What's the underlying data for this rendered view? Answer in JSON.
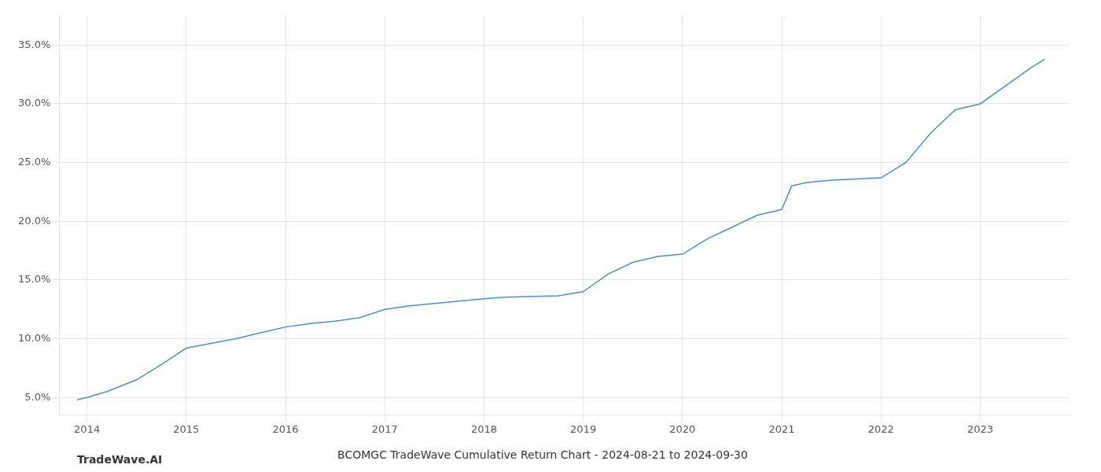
{
  "chart_data": {
    "type": "line",
    "title": "BCOMGC TradeWave Cumulative Return Chart - 2024-08-21 to 2024-09-30",
    "annotations": [
      "TradeWave.AI"
    ],
    "color": "#4a90c4",
    "x": [
      2013.9,
      2014.0,
      2014.2,
      2014.5,
      2014.75,
      2015.0,
      2015.25,
      2015.5,
      2015.75,
      2016.0,
      2016.25,
      2016.5,
      2016.75,
      2017.0,
      2017.25,
      2017.5,
      2017.75,
      2018.0,
      2018.15,
      2018.3,
      2018.5,
      2018.75,
      2019.0,
      2019.25,
      2019.5,
      2019.75,
      2020.0,
      2020.25,
      2020.5,
      2020.75,
      2021.0,
      2021.1,
      2021.25,
      2021.5,
      2021.75,
      2022.0,
      2022.25,
      2022.5,
      2022.75,
      2023.0,
      2023.25,
      2023.5,
      2023.65
    ],
    "values": [
      4.8,
      5.0,
      5.5,
      6.5,
      7.8,
      9.2,
      9.6,
      10.0,
      10.5,
      11.0,
      11.3,
      11.5,
      11.8,
      12.5,
      12.8,
      13.0,
      13.2,
      13.4,
      13.5,
      13.55,
      13.6,
      13.65,
      14.0,
      15.5,
      16.5,
      17.0,
      17.2,
      18.5,
      19.5,
      20.5,
      21.0,
      23.0,
      23.3,
      23.5,
      23.6,
      23.7,
      25.0,
      27.5,
      29.5,
      30.0,
      31.5,
      33.0,
      33.8
    ],
    "xlim": [
      2013.72,
      2023.9
    ],
    "ylim": [
      3.5,
      37.5
    ],
    "xticks": [
      2014,
      2015,
      2016,
      2017,
      2018,
      2019,
      2020,
      2021,
      2022,
      2023
    ],
    "yticks": [
      {
        "value": 5.0,
        "label": "5.0%"
      },
      {
        "value": 10.0,
        "label": "10.0%"
      },
      {
        "value": 15.0,
        "label": "15.0%"
      },
      {
        "value": 20.0,
        "label": "20.0%"
      },
      {
        "value": 25.0,
        "label": "25.0%"
      },
      {
        "value": 30.0,
        "label": "30.0%"
      },
      {
        "value": 35.0,
        "label": "35.0%"
      }
    ],
    "grid": true
  }
}
